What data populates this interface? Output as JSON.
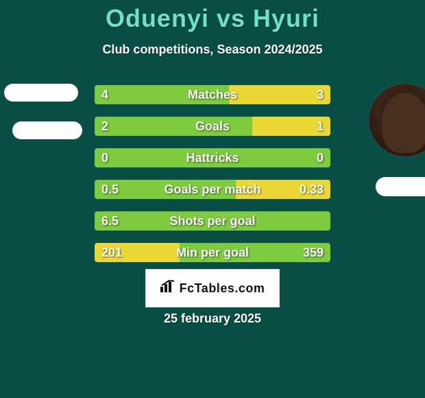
{
  "colors": {
    "background": "#0a4f46",
    "text": "#ffffff",
    "title": "#6fe0c9",
    "bar_green": "#7ecb3f",
    "bar_yellow": "#e8d735",
    "bar_track": "#0a4f46",
    "branding_bg": "#ffffff",
    "branding_text": "#111111"
  },
  "title_fontsize": 36,
  "subtitle_fontsize": 18,
  "row_fontsize": 18,
  "header": {
    "title": "Oduenyi vs Hyuri",
    "subtitle": "Club competitions, Season 2024/2025"
  },
  "branding": {
    "text": "FcTables.com",
    "icon_name": "chart-icon"
  },
  "date": "25 february 2025",
  "rows": [
    {
      "label": "Matches",
      "left": "4",
      "right": "3",
      "left_pct": 57,
      "right_pct": 43,
      "green_side": "left"
    },
    {
      "label": "Goals",
      "left": "2",
      "right": "1",
      "left_pct": 67,
      "right_pct": 33,
      "green_side": "left"
    },
    {
      "label": "Hattricks",
      "left": "0",
      "right": "0",
      "left_pct": 100,
      "right_pct": 0,
      "green_side": "left"
    },
    {
      "label": "Goals per match",
      "left": "0.5",
      "right": "0.33",
      "left_pct": 60,
      "right_pct": 40,
      "green_side": "left"
    },
    {
      "label": "Shots per goal",
      "left": "6.5",
      "right": "",
      "left_pct": 100,
      "right_pct": 0,
      "green_side": "left"
    },
    {
      "label": "Min per goal",
      "left": "201",
      "right": "359",
      "left_pct": 36,
      "right_pct": 64,
      "green_side": "right"
    }
  ]
}
